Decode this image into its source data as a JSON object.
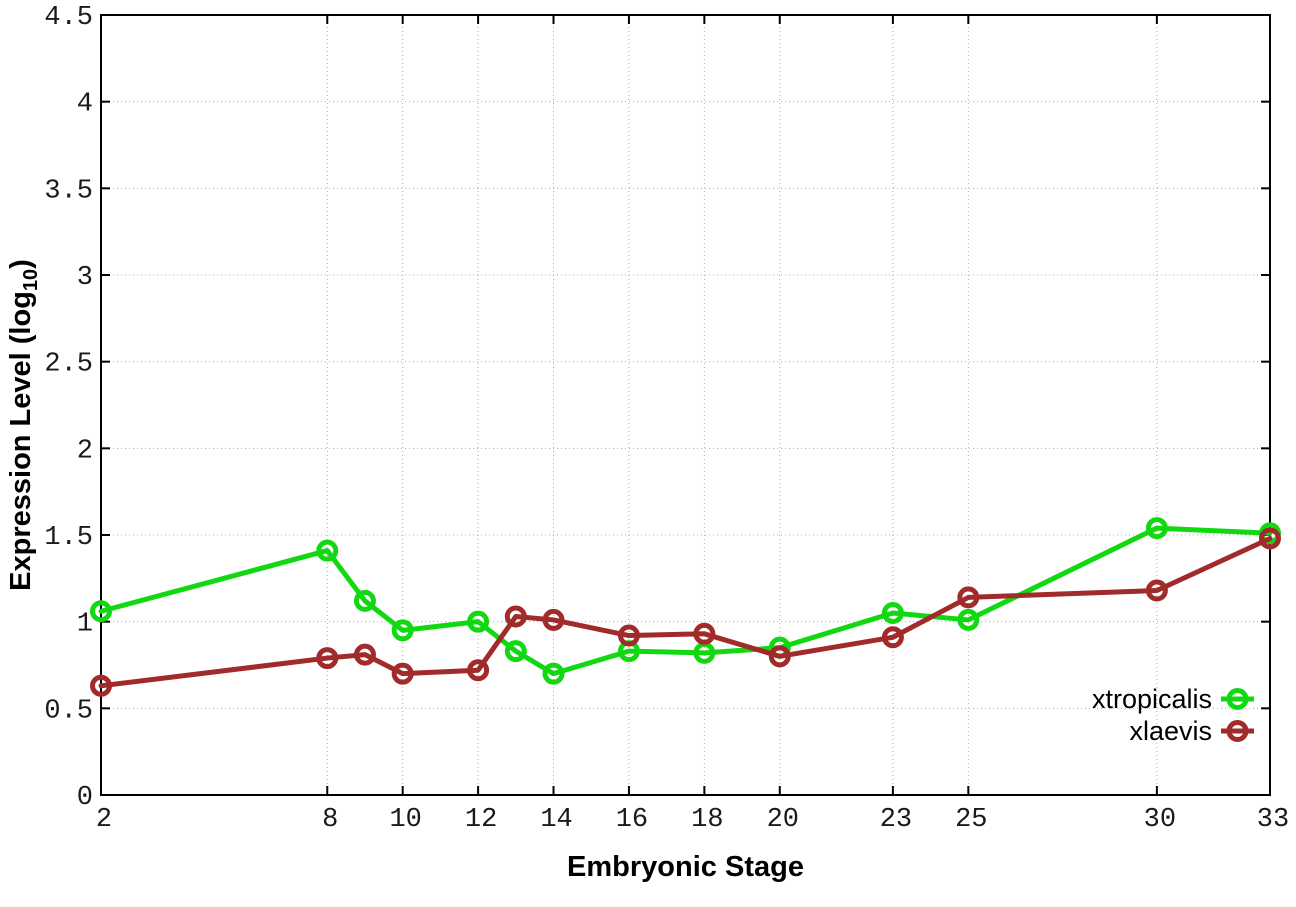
{
  "chart_data": {
    "type": "line",
    "x": [
      2,
      8,
      9,
      10,
      12,
      13,
      14,
      16,
      18,
      20,
      23,
      25,
      30,
      33
    ],
    "series": [
      {
        "name": "xtropicalis",
        "color": "#12D812",
        "values": [
          1.06,
          1.41,
          1.12,
          0.95,
          1.0,
          0.83,
          0.7,
          0.83,
          0.82,
          0.85,
          1.05,
          1.01,
          1.54,
          1.51
        ]
      },
      {
        "name": "xlaevis",
        "color": "#A12A2A",
        "values": [
          0.63,
          0.79,
          0.81,
          0.7,
          0.72,
          1.03,
          1.01,
          0.92,
          0.93,
          0.8,
          0.91,
          1.14,
          1.18,
          1.48
        ]
      }
    ],
    "xlabel": "Embryonic Stage",
    "ylabel": {
      "text": "Expression Level (log10)",
      "prefix": "Expression Level (log",
      "sub": "10",
      "suffix": ")"
    },
    "x_ticks": [
      2,
      8,
      10,
      12,
      14,
      16,
      18,
      20,
      23,
      25,
      30,
      33
    ],
    "y_ticks": [
      0,
      0.5,
      1,
      1.5,
      2,
      2.5,
      3,
      3.5,
      4,
      4.5
    ],
    "xlim": [
      2,
      33
    ],
    "ylim": [
      0,
      4.5
    ],
    "grid": true,
    "legend": {
      "position": "bottom-right",
      "entries": [
        "xtropicalis",
        "xlaevis"
      ]
    },
    "colors": {
      "axis": "#000000",
      "grid": "#aaaaaa",
      "tick_text": "#1a1a1a"
    }
  }
}
